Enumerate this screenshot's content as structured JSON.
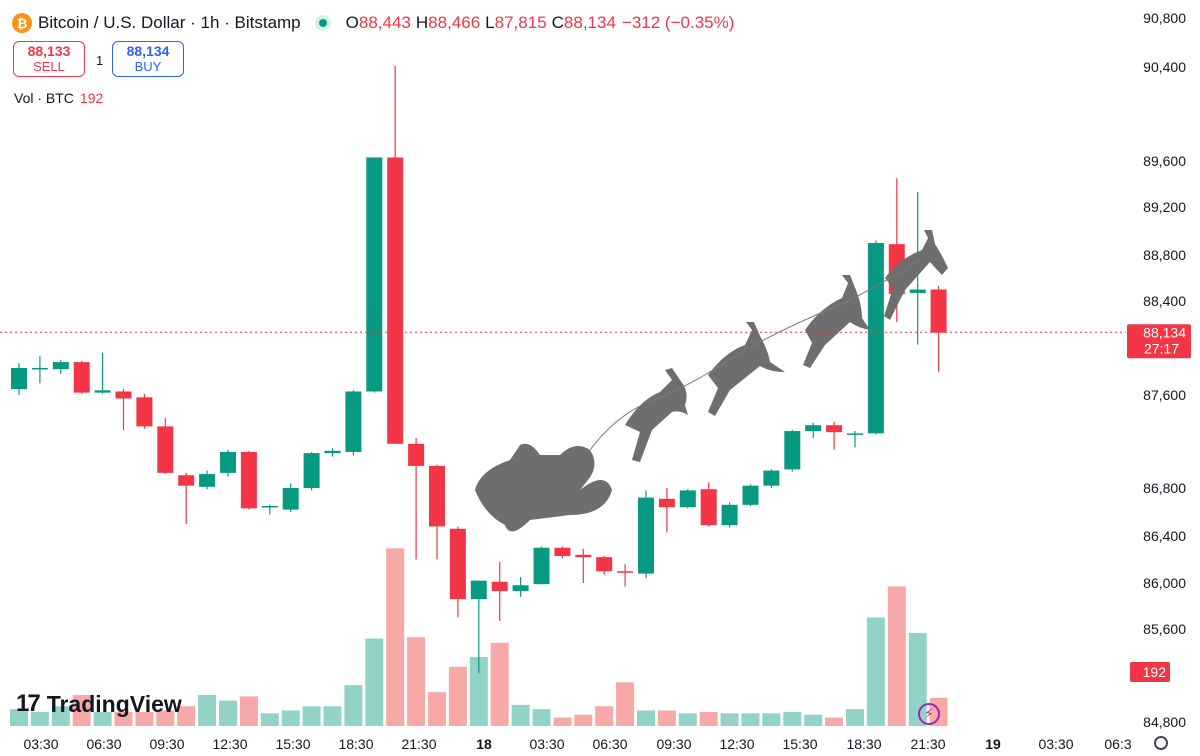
{
  "header": {
    "logo_glyph": "₿",
    "title": "Bitcoin / U.S. Dollar · 1h · Bitstamp",
    "ohlc": {
      "o_key": "O",
      "o": "88,443",
      "h_key": "H",
      "h": "88,466",
      "l_key": "L",
      "l": "87,815",
      "c_key": "C",
      "c": "88,134"
    },
    "change": "−312 (−0.35%)"
  },
  "trade": {
    "sell_price": "88,133",
    "sell_label": "SELL",
    "spread": "1",
    "buy_price": "88,134",
    "buy_label": "BUY"
  },
  "volume_legend": {
    "label": "Vol · BTC",
    "value": "192"
  },
  "branding": {
    "name": "TradingView",
    "mark": "17"
  },
  "colors": {
    "up": "#089981",
    "down": "#f23645",
    "up_vol": "#92d2c7",
    "down_vol": "#f7a9a7"
  },
  "chart_data": {
    "type": "candlestick",
    "y_ticks": [
      "90,800",
      "90,400",
      "89,600",
      "89,200",
      "88,800",
      "88,400",
      "87,600",
      "86,800",
      "86,400",
      "86,000",
      "85,600",
      "84,800"
    ],
    "x_ticks": [
      "03:30",
      "06:30",
      "09:30",
      "12:30",
      "15:30",
      "18:30",
      "21:30",
      "18",
      "03:30",
      "06:30",
      "09:30",
      "12:30",
      "15:30",
      "18:30",
      "21:30",
      "19",
      "03:30",
      "06:3"
    ],
    "price_label": {
      "price": "88,134",
      "countdown": "27:17"
    },
    "volume_label": "192",
    "candles": [
      {
        "o": 87650,
        "h": 87870,
        "l": 87600,
        "c": 87830,
        "v": 12
      },
      {
        "o": 87820,
        "h": 87930,
        "l": 87700,
        "c": 87830,
        "v": 10
      },
      {
        "o": 87820,
        "h": 87900,
        "l": 87780,
        "c": 87880,
        "v": 14
      },
      {
        "o": 87880,
        "h": 87890,
        "l": 87610,
        "c": 87620,
        "v": 22
      },
      {
        "o": 87620,
        "h": 87960,
        "l": 87610,
        "c": 87640,
        "v": 10
      },
      {
        "o": 87630,
        "h": 87650,
        "l": 87300,
        "c": 87570,
        "v": 10
      },
      {
        "o": 87580,
        "h": 87610,
        "l": 87310,
        "c": 87330,
        "v": 10
      },
      {
        "o": 87330,
        "h": 87400,
        "l": 86920,
        "c": 86930,
        "v": 11
      },
      {
        "o": 86910,
        "h": 86930,
        "l": 86500,
        "c": 86820,
        "v": 14
      },
      {
        "o": 86810,
        "h": 86950,
        "l": 86790,
        "c": 86920,
        "v": 22
      },
      {
        "o": 86930,
        "h": 87130,
        "l": 86900,
        "c": 87110,
        "v": 18
      },
      {
        "o": 87110,
        "h": 87120,
        "l": 86620,
        "c": 86630,
        "v": 21
      },
      {
        "o": 86640,
        "h": 86660,
        "l": 86580,
        "c": 86650,
        "v": 9
      },
      {
        "o": 86620,
        "h": 86840,
        "l": 86600,
        "c": 86800,
        "v": 11
      },
      {
        "o": 86800,
        "h": 87110,
        "l": 86780,
        "c": 87100,
        "v": 14
      },
      {
        "o": 87100,
        "h": 87140,
        "l": 87070,
        "c": 87120,
        "v": 14
      },
      {
        "o": 87110,
        "h": 87640,
        "l": 87080,
        "c": 87630,
        "v": 29
      },
      {
        "o": 87630,
        "h": 89630,
        "l": 87620,
        "c": 89630,
        "v": 62
      },
      {
        "o": 89630,
        "h": 90410,
        "l": 87180,
        "c": 87180,
        "v": 126
      },
      {
        "o": 87180,
        "h": 87230,
        "l": 86200,
        "c": 86990,
        "v": 63
      },
      {
        "o": 86990,
        "h": 87000,
        "l": 86200,
        "c": 86480,
        "v": 24
      },
      {
        "o": 86460,
        "h": 86480,
        "l": 85700,
        "c": 85860,
        "v": 42
      },
      {
        "o": 85860,
        "h": 86020,
        "l": 85220,
        "c": 86020,
        "v": 49
      },
      {
        "o": 86010,
        "h": 86180,
        "l": 85670,
        "c": 85930,
        "v": 59
      },
      {
        "o": 85930,
        "h": 86050,
        "l": 85880,
        "c": 85980,
        "v": 15
      },
      {
        "o": 85990,
        "h": 86310,
        "l": 85990,
        "c": 86300,
        "v": 12
      },
      {
        "o": 86300,
        "h": 86310,
        "l": 86210,
        "c": 86230,
        "v": 6
      },
      {
        "o": 86240,
        "h": 86290,
        "l": 86000,
        "c": 86220,
        "v": 8
      },
      {
        "o": 86220,
        "h": 86230,
        "l": 86070,
        "c": 86100,
        "v": 14
      },
      {
        "o": 86100,
        "h": 86160,
        "l": 85970,
        "c": 86090,
        "v": 31
      },
      {
        "o": 86080,
        "h": 86780,
        "l": 86040,
        "c": 86720,
        "v": 11
      },
      {
        "o": 86710,
        "h": 86800,
        "l": 86430,
        "c": 86640,
        "v": 11
      },
      {
        "o": 86640,
        "h": 86790,
        "l": 86630,
        "c": 86780,
        "v": 9
      },
      {
        "o": 86790,
        "h": 86850,
        "l": 86480,
        "c": 86490,
        "v": 10
      },
      {
        "o": 86490,
        "h": 86680,
        "l": 86470,
        "c": 86660,
        "v": 9
      },
      {
        "o": 86660,
        "h": 86830,
        "l": 86650,
        "c": 86820,
        "v": 9
      },
      {
        "o": 86820,
        "h": 86960,
        "l": 86800,
        "c": 86950,
        "v": 9
      },
      {
        "o": 86960,
        "h": 87300,
        "l": 86940,
        "c": 87290,
        "v": 10
      },
      {
        "o": 87290,
        "h": 87360,
        "l": 87230,
        "c": 87340,
        "v": 8
      },
      {
        "o": 87340,
        "h": 87370,
        "l": 87130,
        "c": 87280,
        "v": 6
      },
      {
        "o": 87270,
        "h": 87290,
        "l": 87150,
        "c": 87270,
        "v": 12
      },
      {
        "o": 87270,
        "h": 88920,
        "l": 87260,
        "c": 88900,
        "v": 77
      },
      {
        "o": 88890,
        "h": 89450,
        "l": 88220,
        "c": 88460,
        "v": 99
      },
      {
        "o": 88470,
        "h": 89330,
        "l": 88030,
        "c": 88500,
        "v": 66
      },
      {
        "o": 88500,
        "h": 88530,
        "l": 87800,
        "c": 88130,
        "v": 20
      }
    ]
  }
}
